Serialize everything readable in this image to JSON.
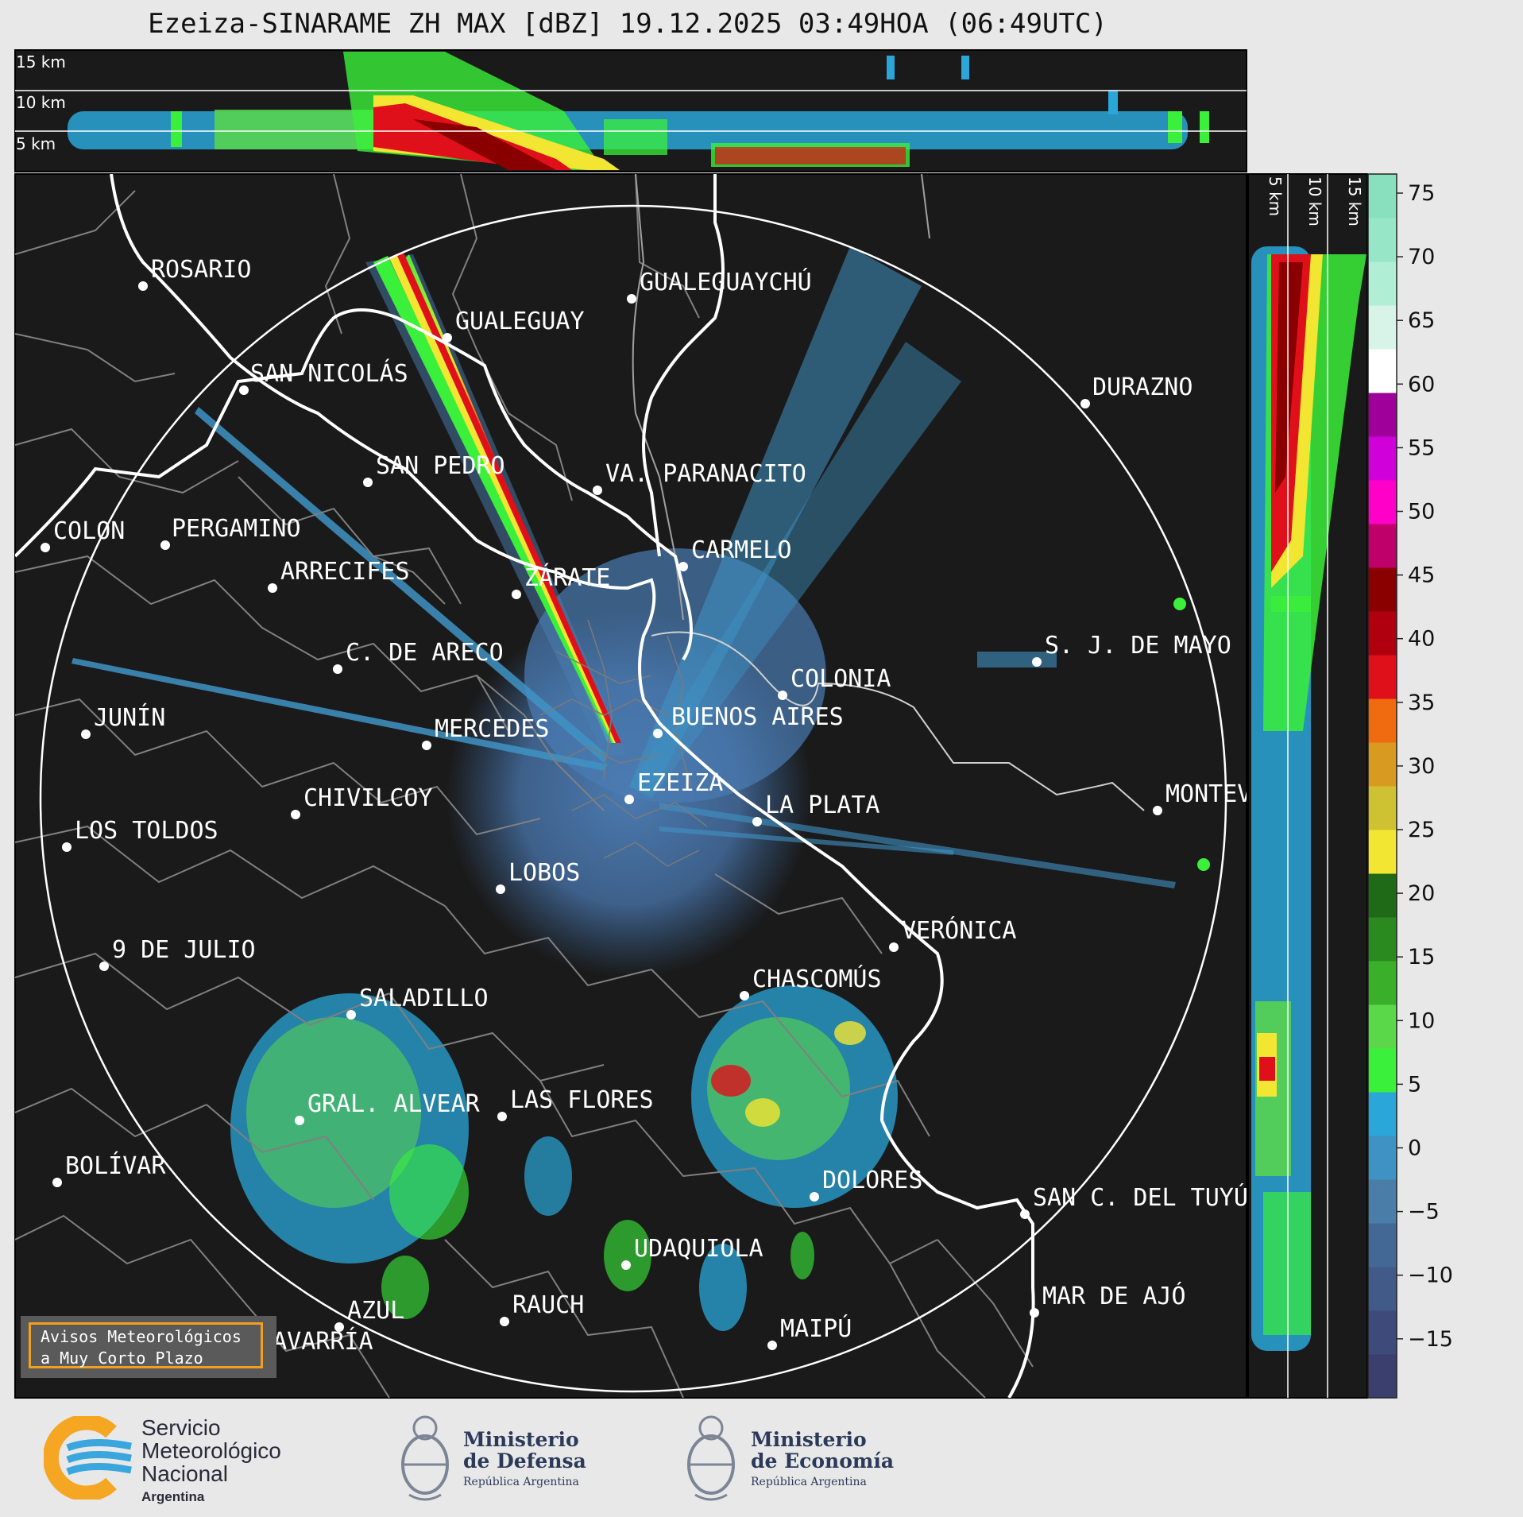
{
  "title": "Ezeiza-SINARAME ZH MAX [dBZ] 19.12.2025 03:49HOA (06:49UTC)",
  "cross_section_top": {
    "labels": [
      "15 km",
      "10 km",
      "5 km"
    ]
  },
  "cross_section_right": {
    "labels": [
      "5 km",
      "10 km",
      "15 km"
    ]
  },
  "colorbar": {
    "unit": "dBZ",
    "ticks": [
      "75",
      "70",
      "65",
      "60",
      "55",
      "50",
      "45",
      "40",
      "35",
      "30",
      "25",
      "20",
      "15",
      "10",
      "5",
      "0",
      "−5",
      "−10",
      "−15"
    ],
    "colors": [
      "#3a3f6e",
      "#3e4a7a",
      "#415a88",
      "#436895",
      "#4a7ea8",
      "#3f93c4",
      "#2aa6d8",
      "#3bf03a",
      "#5bd84a",
      "#3ab02a",
      "#2a8a20",
      "#1e6a16",
      "#f2e632",
      "#cfc232",
      "#d89a20",
      "#f06a10",
      "#e0101a",
      "#b00010",
      "#8a0000",
      "#c0006a",
      "#ff00c8",
      "#d000d8",
      "#a0009a",
      "#ffffff",
      "#d8f4e8",
      "#b0eed6",
      "#98e6c8",
      "#88e0bf"
    ]
  },
  "cities": [
    {
      "name": "ROSARIO"
    },
    {
      "name": "GUALEGUAYCHÚ"
    },
    {
      "name": "GUALEGUAY"
    },
    {
      "name": "SAN NICOLÁS"
    },
    {
      "name": "DURAZNO"
    },
    {
      "name": "SAN PEDRO"
    },
    {
      "name": "VA. PARANACITO"
    },
    {
      "name": "COLON"
    },
    {
      "name": "PERGAMINO"
    },
    {
      "name": "CARMELO"
    },
    {
      "name": "ARRECIFES"
    },
    {
      "name": "ZÁRATE"
    },
    {
      "name": "S. J. DE MAYO"
    },
    {
      "name": "C. DE ARECO"
    },
    {
      "name": "COLONIA"
    },
    {
      "name": "JUNÍN"
    },
    {
      "name": "BUENOS AIRES"
    },
    {
      "name": "MERCEDES"
    },
    {
      "name": "EZEIZA"
    },
    {
      "name": "MONTEVIDEO"
    },
    {
      "name": "CHIVILCOY"
    },
    {
      "name": "LA PLATA"
    },
    {
      "name": "LOS TOLDOS"
    },
    {
      "name": "LOBOS"
    },
    {
      "name": "VERÓNICA"
    },
    {
      "name": "9 DE JULIO"
    },
    {
      "name": "CHASCOMÚS"
    },
    {
      "name": "SALADILLO"
    },
    {
      "name": "GRAL. ALVEAR"
    },
    {
      "name": "LAS FLORES"
    },
    {
      "name": "BOLÍVAR"
    },
    {
      "name": "DOLORES"
    },
    {
      "name": "SAN C. DEL TUYÚ"
    },
    {
      "name": "UDAQUIOLA"
    },
    {
      "name": "MAR DE AJÓ"
    },
    {
      "name": "RAUCH"
    },
    {
      "name": "AZUL"
    },
    {
      "name": "OLAVARRÍA"
    },
    {
      "name": "MAIPÚ"
    }
  ],
  "notice": {
    "line1": "Avisos Meteorológicos",
    "line2": "a Muy Corto Plazo"
  },
  "logos": {
    "smn": {
      "line1": "Servicio",
      "line2": "Meteorológico",
      "line3": "Nacional",
      "sub": "Argentina"
    },
    "defensa": {
      "line1": "Ministerio",
      "line2": "de Defensa",
      "sub": "República Argentina"
    },
    "economia": {
      "line1": "Ministerio",
      "line2": "de Economía",
      "sub": "República Argentina"
    }
  }
}
